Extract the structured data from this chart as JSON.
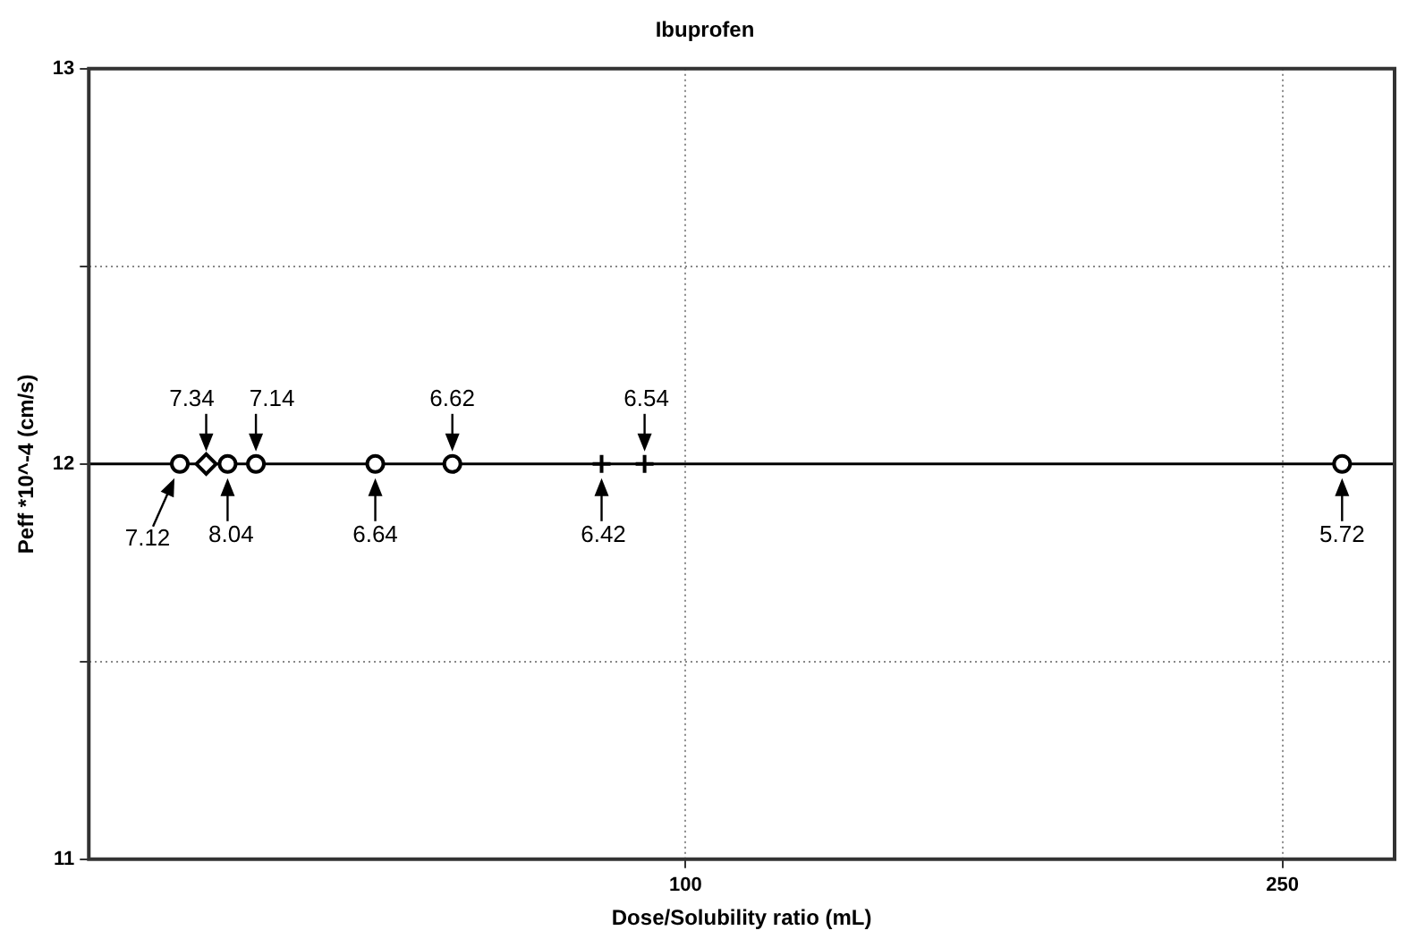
{
  "chart_data": {
    "type": "scatter",
    "title": "Ibuprofen",
    "xlabel": "Dose/Solubility ratio (mL)",
    "ylabel": "Peff *10^-4 (cm/s)",
    "log": "x",
    "xlim": [
      40,
      297
    ],
    "xticks": [
      100,
      250
    ],
    "ylim": [
      11,
      13
    ],
    "yticks": [
      11,
      {
        "value": 11.5,
        "label": null
      },
      12,
      {
        "value": 12.5,
        "label": null
      },
      13
    ],
    "grid": true,
    "legend": false,
    "series": [
      {
        "color": "#000000",
        "marker": "circle",
        "x": [
          46.0,
          49.5,
          51.7,
          62.1,
          69.9,
          274
        ],
        "values": [
          12,
          12,
          12,
          12,
          12,
          12
        ]
      },
      {
        "color": "#000000",
        "marker": "diamond",
        "x": [
          47.9
        ],
        "values": [
          12
        ]
      },
      {
        "color": "#000000",
        "marker": "cross",
        "x": [
          87.9,
          93.9
        ],
        "values": [
          12,
          12
        ]
      }
    ],
    "ref_lines": [
      {
        "axis": "y",
        "value": 12,
        "color": "#000000",
        "line_style": "solid"
      }
    ],
    "annotations": [
      {
        "text": "7.12",
        "x": 46.0,
        "y": 12
      },
      {
        "text": "7.34",
        "x": 47.9,
        "y": 12
      },
      {
        "text": "8.04",
        "x": 49.5,
        "y": 12
      },
      {
        "text": "7.14",
        "x": 51.7,
        "y": 12
      },
      {
        "text": "6.64",
        "x": 62.1,
        "y": 12
      },
      {
        "text": "6.62",
        "x": 69.9,
        "y": 12
      },
      {
        "text": "6.42",
        "x": 87.9,
        "y": 12
      },
      {
        "text": "6.54",
        "x": 93.9,
        "y": 12
      },
      {
        "text": "5.72",
        "x": 274,
        "y": 12
      }
    ]
  }
}
